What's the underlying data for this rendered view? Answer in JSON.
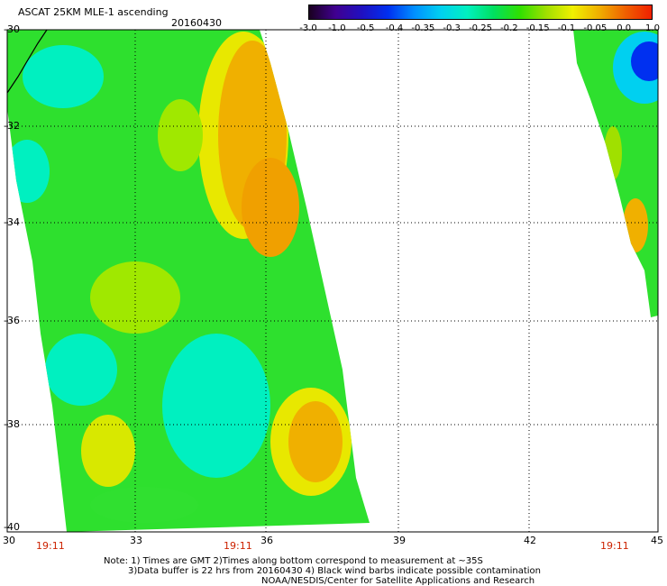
{
  "header": {
    "title": "ASCAT 25KM MLE-1 ascending",
    "date": "20160430"
  },
  "colorbar": {
    "labels": [
      "-3.0",
      "-1.0",
      "-0.5",
      "-0.4",
      "-0.35",
      "-0.3",
      "-0.25",
      "-0.2",
      "-0.15",
      "-0.1",
      "-0.05",
      "0.0",
      "1.0"
    ],
    "colors": [
      "#1a0020",
      "#400090",
      "#2010c0",
      "#0030f0",
      "#0090ff",
      "#00d0f0",
      "#00f0c0",
      "#00e060",
      "#30e000",
      "#a0e000",
      "#f0f000",
      "#f0b000",
      "#f06000",
      "#f02000"
    ]
  },
  "axes": {
    "lat_labels": [
      "-30",
      "-32",
      "-34",
      "-36",
      "-38",
      "-40"
    ],
    "lon_labels": [
      "30",
      "33",
      "36",
      "39",
      "42",
      "45"
    ]
  },
  "pass_times": [
    "19:11",
    "19:11",
    "19:11"
  ],
  "notes": {
    "line1": "Note: 1) Times are GMT 2)Times along bottom correspond to measurement at ~35S",
    "line2": "3)Data buffer is 22 hrs from 20160430 4) Black wind barbs indicate possible contamination",
    "line3": "NOAA/NESDIS/Center for Satellite Applications and Research"
  }
}
